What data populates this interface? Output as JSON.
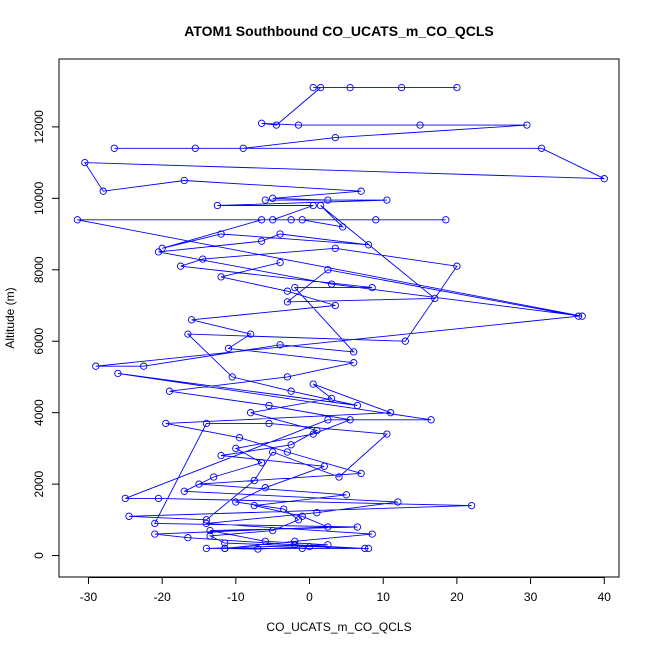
{
  "chart_data": {
    "type": "scatter",
    "title": "ATOM1 Southbound CO_UCATS_m_CO_QCLS",
    "xlabel": "CO_UCATS_m_CO_QCLS",
    "ylabel": "Altitude (m)",
    "xlim": [
      -34,
      42
    ],
    "ylim": [
      -600,
      13900
    ],
    "xticks": [
      "-30",
      "-20",
      "-10",
      "0",
      "10",
      "20",
      "30",
      "40"
    ],
    "yticks": [
      "0",
      "2000",
      "4000",
      "6000",
      "8000",
      "10000",
      "12000"
    ],
    "grid": false,
    "style": "points connected by lines (type='b')",
    "series": [
      {
        "color": "#0000ff",
        "x": [
          0.5,
          5.5,
          12.5,
          20.0,
          1.5,
          -4.5,
          -6.5,
          -1.5,
          15.0,
          29.5,
          3.5,
          -9.0,
          -15.5,
          -26.5,
          31.5,
          40.0,
          -30.5,
          -28.0,
          -17.0,
          7.0,
          -5.0,
          2.5,
          -6.0,
          10.5,
          -12.5,
          0.5,
          -5.0,
          18.5,
          9.0,
          -2.5,
          -31.5,
          37.0,
          3.0,
          -20.5,
          -6.5,
          -4.0,
          8.0,
          -12.0,
          -20.0,
          -6.5,
          -1.0,
          4.5,
          1.5,
          17.0,
          -3.0,
          2.5,
          36.5,
          -29.0,
          -22.5,
          -4.0,
          6.0,
          -2.0,
          8.5,
          -17.5,
          -14.5,
          3.5,
          20.0,
          13.0,
          -16.5,
          -10.5,
          -2.5,
          6.5,
          -26.0,
          16.5,
          2.5,
          -25.0,
          -20.5,
          22.0,
          -24.5,
          -14.0,
          -7.5,
          -5.0,
          4.0,
          10.5,
          -5.5,
          -14.0,
          -21.0,
          6.5,
          -13.5,
          -6.0,
          2.5,
          -14.0,
          -11.5,
          -1.0,
          8.0,
          -11.5,
          -13.5,
          -5.0,
          -1.5,
          -3.5,
          -10.0,
          -6.0,
          2.0,
          -12.0,
          -2.5,
          1.0,
          -8.0,
          3.0,
          0.5,
          11.0,
          -19.5,
          -9.5,
          -3.0,
          7.0,
          -15.0,
          5.0,
          -7.5,
          -1.0,
          2.5,
          -21.0,
          -16.5,
          -2.0,
          7.5,
          0.0,
          -7.0,
          -11.5,
          -2.0,
          8.5,
          -14.0,
          1.0,
          12.0,
          -17.0,
          -13.0,
          -6.5,
          -10.0,
          0.5,
          5.5,
          -5.5,
          -19.0,
          -3.0,
          6.0,
          -11.0,
          -8.0,
          -16.0,
          3.5,
          -3.0,
          -12.0,
          -4.0
        ],
        "y": [
          13100,
          13100,
          13100,
          13100,
          13100,
          12050,
          12100,
          12050,
          12050,
          12050,
          11700,
          11400,
          11400,
          11400,
          11400,
          10550,
          11000,
          10200,
          10500,
          10200,
          10000,
          9950,
          9950,
          9950,
          9800,
          9800,
          9400,
          9400,
          9400,
          9400,
          9400,
          6700,
          7600,
          8500,
          8800,
          9000,
          8700,
          9000,
          8600,
          9400,
          9400,
          9200,
          9800,
          7200,
          7100,
          8000,
          6700,
          5300,
          5300,
          5900,
          5700,
          7500,
          7500,
          8100,
          8300,
          8600,
          8100,
          6000,
          6200,
          5000,
          4600,
          4200,
          5100,
          3800,
          3800,
          1600,
          1600,
          1400,
          1100,
          1000,
          2100,
          2900,
          2200,
          3400,
          3700,
          3700,
          900,
          800,
          700,
          400,
          300,
          200,
          200,
          200,
          200,
          350,
          550,
          700,
          1000,
          1300,
          1500,
          1900,
          2500,
          2800,
          3100,
          3500,
          4000,
          4400,
          4800,
          4000,
          3700,
          3300,
          2900,
          2300,
          2000,
          1700,
          1400,
          1100,
          800,
          600,
          500,
          300,
          200,
          250,
          180,
          200,
          400,
          600,
          900,
          1200,
          1500,
          1800,
          2200,
          2600,
          3000,
          3400,
          3800,
          4200,
          4600,
          5000,
          5400,
          5800,
          6200,
          6600,
          7000,
          7400,
          7800,
          8200
        ]
      }
    ]
  }
}
